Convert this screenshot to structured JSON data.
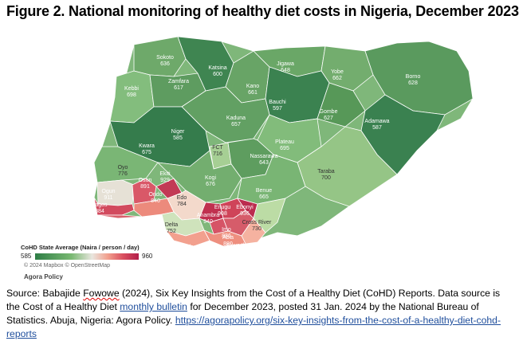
{
  "figure": {
    "title": "Figure 2. National monitoring of healthy diet costs in Nigeria, December 2023"
  },
  "map": {
    "states": [
      {
        "name": "Sokoto",
        "value": "636"
      },
      {
        "name": "Zamfara",
        "value": "617"
      },
      {
        "name": "Katsina",
        "value": "600"
      },
      {
        "name": "Jigawa",
        "value": "648"
      },
      {
        "name": "Yobe",
        "value": "662"
      },
      {
        "name": "Borno",
        "value": "628"
      },
      {
        "name": "Kebbi",
        "value": "698"
      },
      {
        "name": "Kano",
        "value": "661"
      },
      {
        "name": "Bauchi",
        "value": "597"
      },
      {
        "name": "Gombe",
        "value": "627"
      },
      {
        "name": "Kaduna",
        "value": "657"
      },
      {
        "name": "Niger",
        "value": "585"
      },
      {
        "name": "Adamawa",
        "value": "587"
      },
      {
        "name": "Kwara",
        "value": "675"
      },
      {
        "name": "FCT",
        "value": "716"
      },
      {
        "name": "Plateau",
        "value": "695"
      },
      {
        "name": "Nassarawa",
        "value": "643"
      },
      {
        "name": "Oyo",
        "value": "776"
      },
      {
        "name": "Ekiti",
        "value": "929"
      },
      {
        "name": "Osun",
        "value": "891"
      },
      {
        "name": "Kogi",
        "value": "676"
      },
      {
        "name": "Taraba",
        "value": "700"
      },
      {
        "name": "Ogun",
        "value": "911"
      },
      {
        "name": "Ondo",
        "value": "840"
      },
      {
        "name": "Edo",
        "value": "784"
      },
      {
        "name": "Benue",
        "value": "665"
      },
      {
        "name": "Lagos",
        "value": "884"
      },
      {
        "name": "Enugu",
        "value": "908"
      },
      {
        "name": "Ebonyi",
        "value": "936"
      },
      {
        "name": "Anambra",
        "value": "940"
      },
      {
        "name": "Delta",
        "value": "752"
      },
      {
        "name": "Imo",
        "value": "886"
      },
      {
        "name": "Abia",
        "value": "880"
      },
      {
        "name": "Cross River",
        "value": "730"
      },
      {
        "name": "Akwa Ibom",
        "value": "800"
      },
      {
        "name": "Rivers",
        "value": "863"
      },
      {
        "name": "Bayelsa",
        "value": "802"
      }
    ],
    "legend": {
      "title": "CoHD State Average (Naira / person / day)",
      "min": "585",
      "max": "960"
    },
    "credit": "© 2024 Mapbox © OpenStreetMap",
    "brand": "Agora Policy"
  },
  "source": {
    "prefix": "Source: Babajide ",
    "author_flagged": "Fowowe",
    "mid": " (2024), Six Key Insights from the Cost of a Healthy Diet (CoHD) Reports. Data source is the Cost of a Healthy Diet ",
    "link_text": "monthly bulletin",
    "after": " for December 2023, posted 31 Jan. 2024 by the National Bureau of Statistics. Abuja, Nigeria: Agora Policy. ",
    "url": "https://agorapolicy.org/six-key-insights-from-the-cost-of-a-healthy-diet-cohd-reports"
  }
}
